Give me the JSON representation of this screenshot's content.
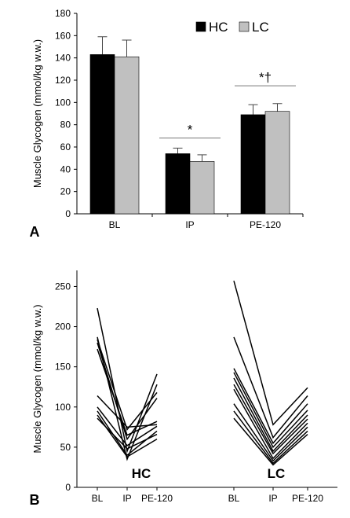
{
  "chart_data": [
    {
      "type": "bar",
      "panel_label": "A",
      "ylabel": "Muscle Glycogen (mmol/kg w.w.)",
      "categories": [
        "BL",
        "IP",
        "PE-120"
      ],
      "ylim": [
        0,
        180
      ],
      "yticks": [
        0,
        20,
        40,
        60,
        80,
        100,
        120,
        140,
        160,
        180
      ],
      "series": [
        {
          "name": "HC",
          "color": "#000000",
          "values": [
            143,
            54,
            89
          ],
          "errors": [
            16,
            5,
            9
          ]
        },
        {
          "name": "LC",
          "color": "#c0c0c0",
          "values": [
            141,
            47,
            92
          ],
          "errors": [
            15,
            6,
            7
          ]
        }
      ],
      "legend_position": "top-right",
      "annotations": [
        {
          "category": "IP",
          "text": "*",
          "y": 68
        },
        {
          "category": "PE-120",
          "text": "*†",
          "y": 115
        }
      ]
    },
    {
      "type": "line",
      "panel_label": "B",
      "ylabel": "Muscle Glycogen (mmol/kg w.w.)",
      "ylim": [
        0,
        270
      ],
      "yticks": [
        0,
        50,
        100,
        150,
        200,
        250
      ],
      "groups": [
        {
          "label": "HC",
          "x": [
            "BL",
            "IP",
            "PE-120"
          ],
          "lines": [
            [
              223,
              45,
              141
            ],
            [
              187,
              35,
              128
            ],
            [
              184,
              72,
              118
            ],
            [
              180,
              60,
              111
            ],
            [
              172,
              65,
              82
            ],
            [
              114,
              75,
              78
            ],
            [
              100,
              52,
              76
            ],
            [
              95,
              40,
              70
            ],
            [
              90,
              38,
              60
            ],
            [
              86,
              48,
              66
            ]
          ]
        },
        {
          "label": "LC",
          "x": [
            "BL",
            "IP",
            "PE-120"
          ],
          "lines": [
            [
              257,
              78,
              124
            ],
            [
              187,
              62,
              114
            ],
            [
              148,
              55,
              104
            ],
            [
              143,
              50,
              96
            ],
            [
              136,
              45,
              90
            ],
            [
              128,
              42,
              85
            ],
            [
              122,
              36,
              80
            ],
            [
              104,
              33,
              75
            ],
            [
              95,
              30,
              70
            ],
            [
              86,
              28,
              66
            ]
          ]
        }
      ]
    }
  ]
}
